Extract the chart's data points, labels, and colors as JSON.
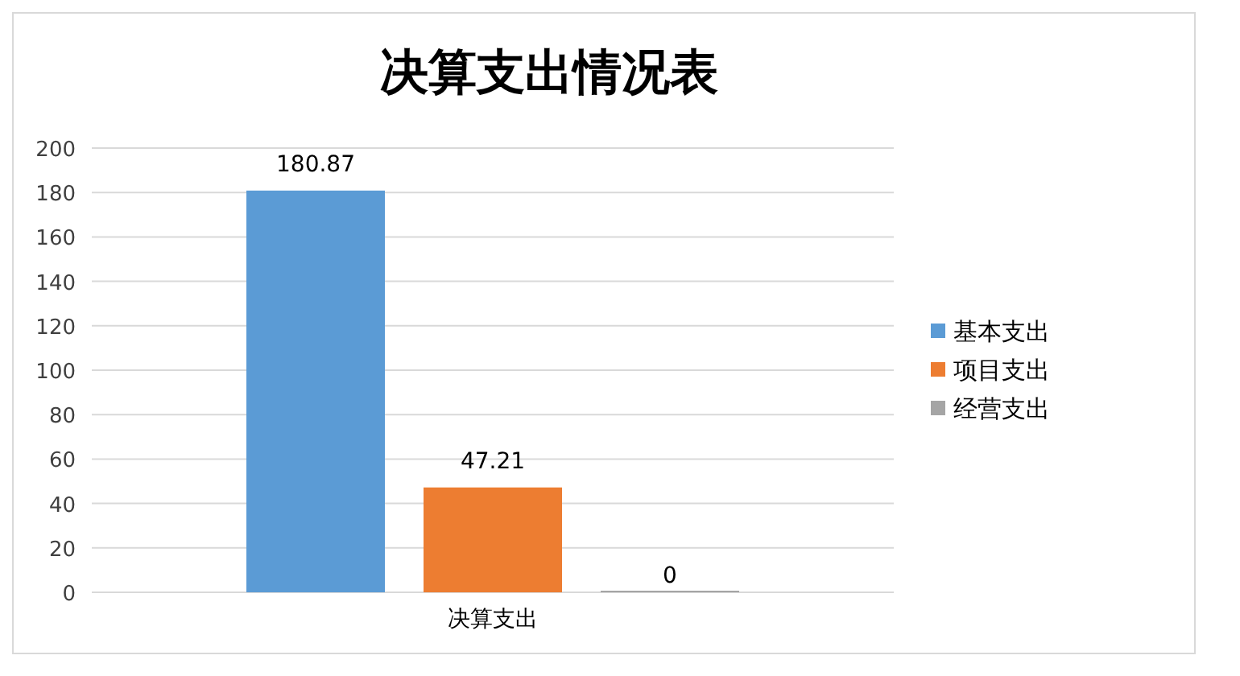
{
  "chart_data": {
    "type": "bar",
    "title": "决算支出情况表",
    "categories": [
      "决算支出"
    ],
    "series": [
      {
        "name": "基本支出",
        "color": "#5b9bd5",
        "values": [
          180.87
        ]
      },
      {
        "name": "项目支出",
        "color": "#ed7d31",
        "values": [
          47.21
        ]
      },
      {
        "name": "经营支出",
        "color": "#a5a5a5",
        "values": [
          0
        ]
      }
    ],
    "ylim": [
      0,
      200
    ],
    "yticks": [
      0,
      20,
      40,
      60,
      80,
      100,
      120,
      140,
      160,
      180,
      200
    ],
    "grid": "y",
    "legend": "right",
    "data_labels": true
  }
}
